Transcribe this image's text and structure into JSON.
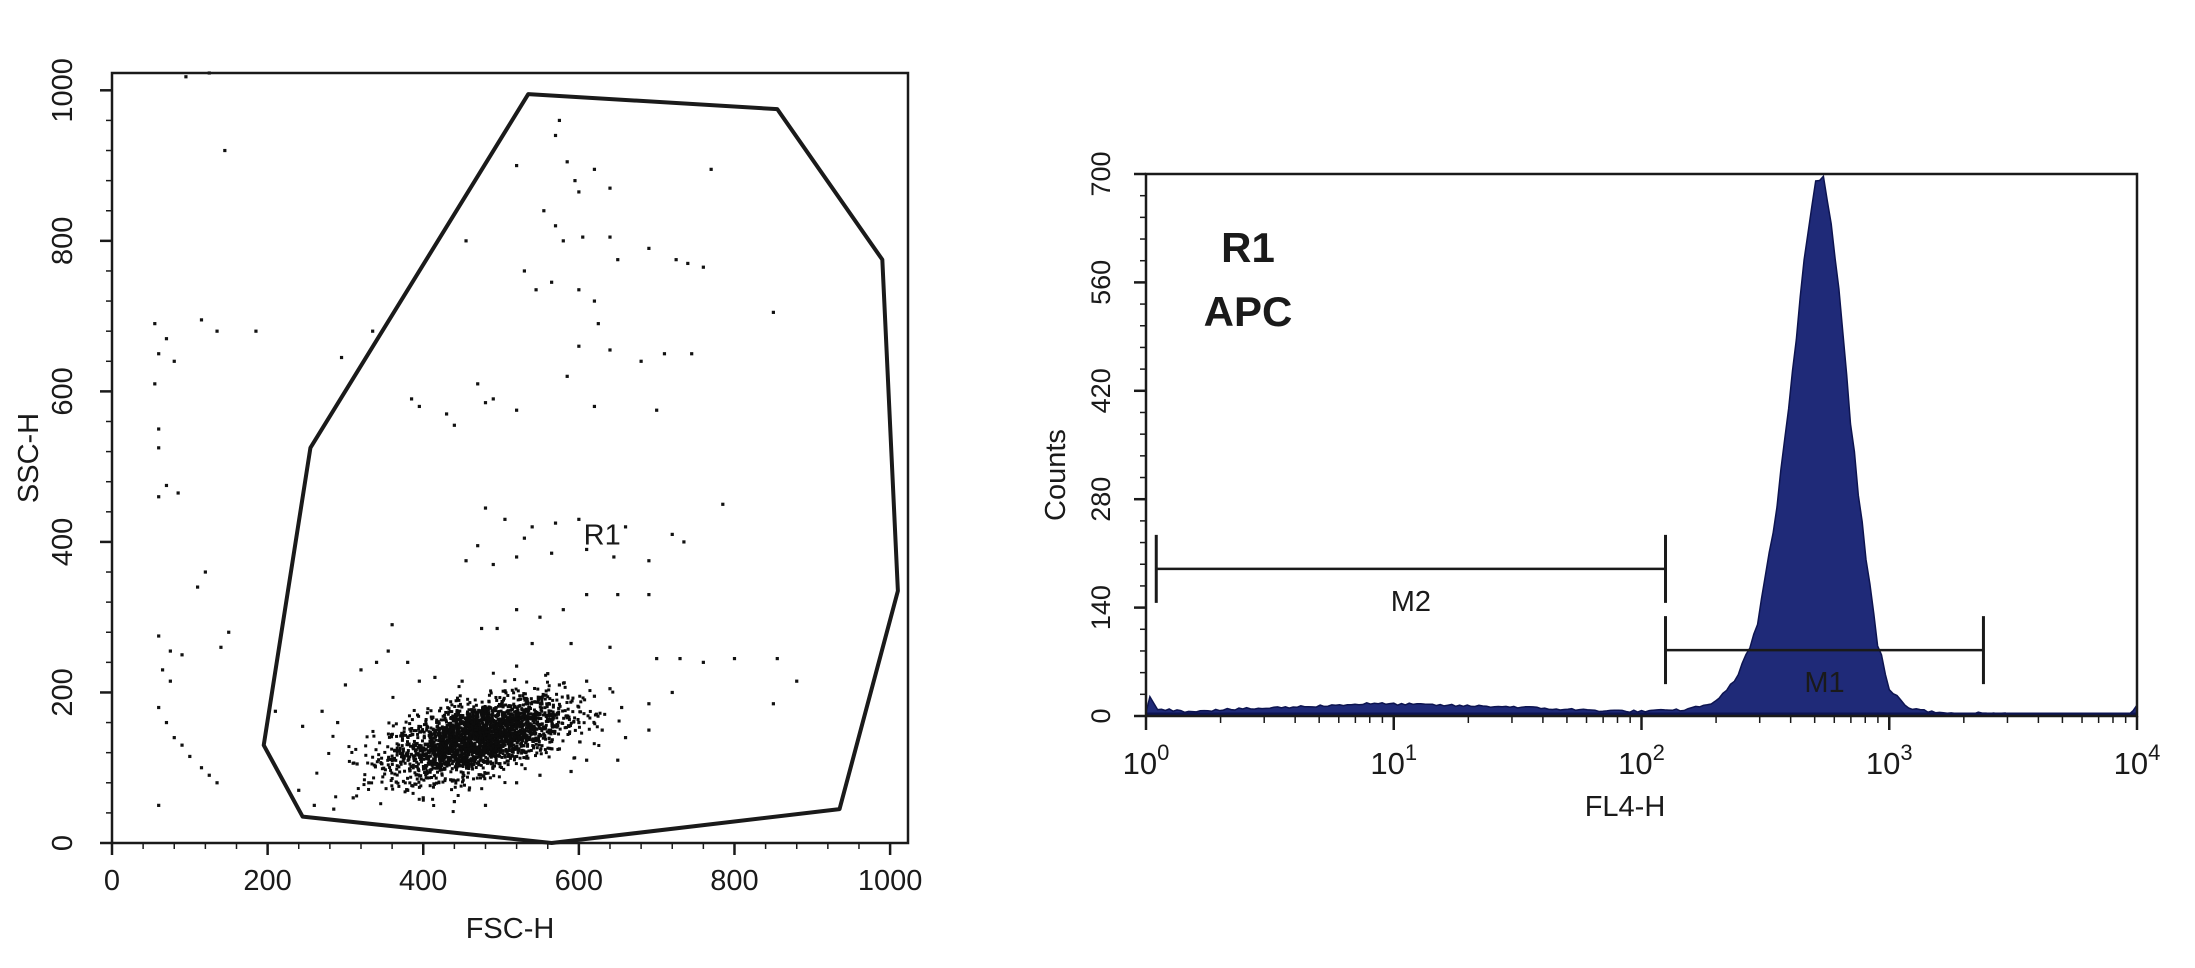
{
  "chart_data": [
    {
      "type": "scatter",
      "title": "",
      "xlabel": "FSC-H",
      "ylabel": "SSC-H",
      "xlim": [
        0,
        1023
      ],
      "ylim": [
        0,
        1023
      ],
      "x_ticks": [
        0,
        200,
        400,
        600,
        800,
        1000
      ],
      "y_ticks": [
        0,
        200,
        400,
        600,
        800,
        1000
      ],
      "gate": {
        "label": "R1",
        "label_position": [
          630,
          410
        ],
        "polygon": [
          [
            195,
            130
          ],
          [
            255,
            525
          ],
          [
            535,
            995
          ],
          [
            855,
            975
          ],
          [
            990,
            775
          ],
          [
            1010,
            335
          ],
          [
            935,
            45
          ],
          [
            565,
            0
          ],
          [
            245,
            35
          ]
        ]
      },
      "population": {
        "center": [
          470,
          140
        ],
        "spread": [
          55,
          30
        ],
        "count": 2600,
        "density": "high"
      },
      "scattered_points": [
        [
          95,
          1018
        ],
        [
          125,
          1023
        ],
        [
          145,
          920
        ],
        [
          575,
          960
        ],
        [
          570,
          940
        ],
        [
          585,
          905
        ],
        [
          595,
          880
        ],
        [
          600,
          865
        ],
        [
          620,
          895
        ],
        [
          640,
          870
        ],
        [
          555,
          840
        ],
        [
          570,
          820
        ],
        [
          580,
          800
        ],
        [
          605,
          805
        ],
        [
          640,
          805
        ],
        [
          650,
          775
        ],
        [
          690,
          790
        ],
        [
          725,
          775
        ],
        [
          740,
          770
        ],
        [
          760,
          765
        ],
        [
          530,
          760
        ],
        [
          545,
          735
        ],
        [
          565,
          745
        ],
        [
          600,
          735
        ],
        [
          620,
          720
        ],
        [
          625,
          690
        ],
        [
          600,
          660
        ],
        [
          640,
          655
        ],
        [
          680,
          640
        ],
        [
          710,
          650
        ],
        [
          745,
          650
        ],
        [
          850,
          705
        ],
        [
          770,
          895
        ],
        [
          520,
          900
        ],
        [
          455,
          800
        ],
        [
          335,
          680
        ],
        [
          295,
          645
        ],
        [
          185,
          680
        ],
        [
          115,
          695
        ],
        [
          135,
          680
        ],
        [
          55,
          690
        ],
        [
          60,
          650
        ],
        [
          70,
          670
        ],
        [
          80,
          640
        ],
        [
          55,
          610
        ],
        [
          60,
          550
        ],
        [
          60,
          525
        ],
        [
          470,
          610
        ],
        [
          480,
          585
        ],
        [
          490,
          590
        ],
        [
          520,
          575
        ],
        [
          430,
          570
        ],
        [
          440,
          555
        ],
        [
          385,
          590
        ],
        [
          395,
          580
        ],
        [
          585,
          620
        ],
        [
          620,
          580
        ],
        [
          700,
          575
        ],
        [
          785,
          450
        ],
        [
          720,
          410
        ],
        [
          735,
          400
        ],
        [
          660,
          420
        ],
        [
          600,
          430
        ],
        [
          570,
          425
        ],
        [
          540,
          420
        ],
        [
          530,
          405
        ],
        [
          505,
          430
        ],
        [
          480,
          445
        ],
        [
          470,
          395
        ],
        [
          455,
          375
        ],
        [
          490,
          370
        ],
        [
          520,
          380
        ],
        [
          565,
          385
        ],
        [
          610,
          390
        ],
        [
          645,
          380
        ],
        [
          690,
          375
        ],
        [
          690,
          330
        ],
        [
          650,
          330
        ],
        [
          610,
          330
        ],
        [
          580,
          310
        ],
        [
          550,
          300
        ],
        [
          520,
          310
        ],
        [
          495,
          285
        ],
        [
          475,
          285
        ],
        [
          540,
          265
        ],
        [
          590,
          265
        ],
        [
          640,
          260
        ],
        [
          700,
          245
        ],
        [
          730,
          245
        ],
        [
          760,
          240
        ],
        [
          800,
          245
        ],
        [
          855,
          245
        ],
        [
          880,
          215
        ],
        [
          850,
          185
        ],
        [
          720,
          200
        ],
        [
          690,
          185
        ],
        [
          655,
          180
        ],
        [
          620,
          195
        ],
        [
          600,
          160
        ],
        [
          630,
          150
        ],
        [
          660,
          140
        ],
        [
          690,
          150
        ],
        [
          575,
          125
        ],
        [
          60,
          460
        ],
        [
          70,
          475
        ],
        [
          85,
          465
        ],
        [
          60,
          275
        ],
        [
          75,
          255
        ],
        [
          90,
          250
        ],
        [
          65,
          230
        ],
        [
          75,
          215
        ],
        [
          60,
          180
        ],
        [
          70,
          160
        ],
        [
          80,
          140
        ],
        [
          90,
          130
        ],
        [
          100,
          115
        ],
        [
          115,
          100
        ],
        [
          125,
          90
        ],
        [
          135,
          80
        ],
        [
          60,
          50
        ],
        [
          150,
          280
        ],
        [
          140,
          260
        ],
        [
          120,
          360
        ],
        [
          110,
          340
        ],
        [
          210,
          175
        ],
        [
          245,
          155
        ],
        [
          270,
          175
        ],
        [
          290,
          160
        ],
        [
          315,
          105
        ],
        [
          330,
          80
        ],
        [
          310,
          60
        ],
        [
          285,
          45
        ],
        [
          260,
          50
        ],
        [
          240,
          70
        ],
        [
          380,
          70
        ],
        [
          400,
          60
        ],
        [
          440,
          55
        ],
        [
          480,
          50
        ],
        [
          360,
          290
        ],
        [
          355,
          255
        ],
        [
          340,
          240
        ],
        [
          320,
          230
        ],
        [
          300,
          210
        ],
        [
          380,
          240
        ],
        [
          395,
          215
        ],
        [
          415,
          220
        ],
        [
          430,
          190
        ],
        [
          450,
          215
        ],
        [
          505,
          215
        ],
        [
          520,
          235
        ],
        [
          560,
          225
        ],
        [
          575,
          210
        ],
        [
          610,
          215
        ],
        [
          640,
          205
        ],
        [
          610,
          110
        ],
        [
          650,
          110
        ],
        [
          590,
          95
        ],
        [
          550,
          90
        ],
        [
          520,
          80
        ]
      ]
    },
    {
      "type": "histogram",
      "title": "",
      "annotation": [
        "R1",
        "APC"
      ],
      "xlabel": "FL4-H",
      "ylabel": "Counts",
      "x_scale": "log",
      "xlim": [
        1,
        10000
      ],
      "ylim": [
        0,
        700
      ],
      "x_ticks": [
        "10^0",
        "10^1",
        "10^2",
        "10^3",
        "10^4"
      ],
      "x_tick_values": [
        1,
        10,
        100,
        1000,
        10000
      ],
      "y_ticks": [
        0,
        140,
        280,
        420,
        560,
        700
      ],
      "fill_color": "#1f2a78",
      "edge_color": "#0d1450",
      "peak": {
        "x": 520,
        "counts": 705
      },
      "profile": [
        [
          1,
          5
        ],
        [
          1.03,
          28
        ],
        [
          1.1,
          10
        ],
        [
          1.4,
          6
        ],
        [
          2,
          8
        ],
        [
          3,
          10
        ],
        [
          5,
          13
        ],
        [
          8,
          16
        ],
        [
          12,
          15
        ],
        [
          20,
          13
        ],
        [
          30,
          12
        ],
        [
          45,
          9
        ],
        [
          70,
          7
        ],
        [
          100,
          6
        ],
        [
          150,
          8
        ],
        [
          200,
          18
        ],
        [
          250,
          55
        ],
        [
          300,
          130
        ],
        [
          350,
          260
        ],
        [
          400,
          420
        ],
        [
          450,
          580
        ],
        [
          500,
          690
        ],
        [
          540,
          705
        ],
        [
          580,
          650
        ],
        [
          630,
          540
        ],
        [
          700,
          380
        ],
        [
          800,
          210
        ],
        [
          900,
          90
        ],
        [
          1000,
          35
        ],
        [
          1200,
          10
        ],
        [
          1500,
          5
        ],
        [
          3000,
          3
        ],
        [
          6000,
          2
        ],
        [
          9500,
          2
        ],
        [
          10000,
          15
        ]
      ],
      "markers": [
        {
          "label": "M2",
          "start": 1.1,
          "end": 125,
          "level": 190
        },
        {
          "label": "M1",
          "start": 125,
          "end": 2400,
          "level": 85
        }
      ]
    }
  ]
}
